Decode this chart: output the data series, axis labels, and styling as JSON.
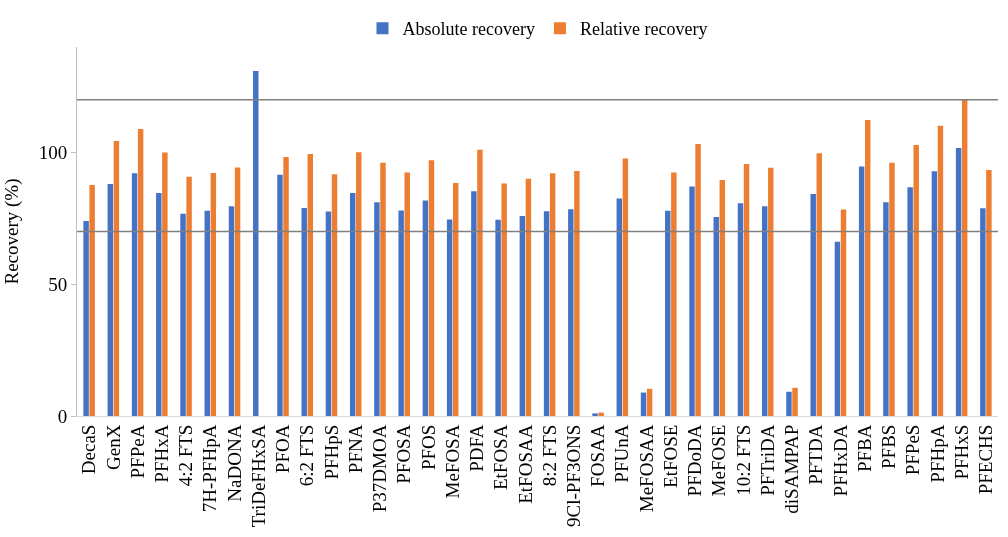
{
  "chart_data": {
    "type": "bar",
    "ylabel": "Recovery (%)",
    "categories": [
      "DecaS",
      "GenX",
      "PFPeA",
      "PFHxA",
      "4:2 FTS",
      "7H-PFHpA",
      "NaDONA",
      "TriDeFHxSA",
      "PFOA",
      "6:2 FTS",
      "PFHpS",
      "PFNA",
      "P37DMOA",
      "PFOSA",
      "PFOS",
      "MeFOSA",
      "PDFA",
      "EtFOSA",
      "EtFOSAA",
      "8:2 FTS",
      "9Cl-PF3ONS",
      "FOSAA",
      "PFUnA",
      "MeFOSAA",
      "EtFOSE",
      "PFDoDA",
      "MeFOSE",
      "10:2 FTS",
      "PFTriDA",
      "diSAMPAP",
      "PFTDA",
      "PFHxDA",
      "PFBA",
      "PFBS",
      "PFPeS",
      "PFHpA",
      "PFHxS",
      "PFECHS"
    ],
    "series": [
      {
        "name": "Absolute recovery",
        "color": "#4472c4",
        "values": [
          74.0,
          88.0,
          92.1,
          84.6,
          76.7,
          77.9,
          79.6,
          130.9,
          91.5,
          78.9,
          77.6,
          84.6,
          81.1,
          78.0,
          81.8,
          74.6,
          85.3,
          74.5,
          75.9,
          77.7,
          78.4,
          1.0,
          82.5,
          8.9,
          77.9,
          87.1,
          75.5,
          80.7,
          79.6,
          9.2,
          84.2,
          66.1,
          94.7,
          81.1,
          86.8,
          92.9,
          101.7,
          78.8
        ]
      },
      {
        "name": "Relative recovery",
        "color": "#ed7d31",
        "values": [
          87.6,
          104.3,
          108.9,
          100.0,
          90.8,
          92.2,
          94.3,
          0,
          98.3,
          99.4,
          91.7,
          100.1,
          96.1,
          92.4,
          97.0,
          88.4,
          101.0,
          88.2,
          90.0,
          92.1,
          93.0,
          1.3,
          97.7,
          10.3,
          92.4,
          103.2,
          89.5,
          95.6,
          94.2,
          10.7,
          99.7,
          78.3,
          112.3,
          96.1,
          102.8,
          110.1,
          120.1,
          93.3
        ]
      }
    ],
    "ylim": [
      0,
      140
    ],
    "yticks": [
      0,
      50,
      100
    ],
    "ref_lines": [
      {
        "axis": "y",
        "value": 120,
        "color": "#808080"
      },
      {
        "axis": "y",
        "value": 70,
        "color": "#808080"
      }
    ],
    "legend": "top"
  }
}
